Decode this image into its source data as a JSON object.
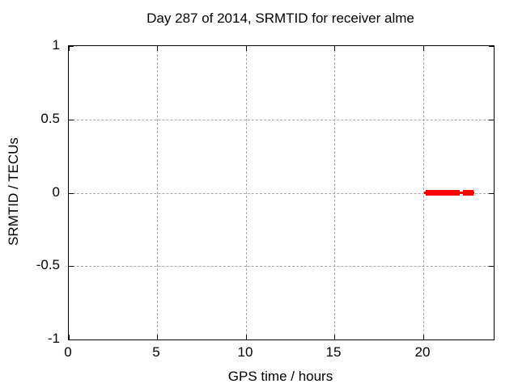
{
  "chart_data": {
    "type": "line",
    "title": "Day 287 of 2014, SRMTID for receiver alme",
    "xlabel": "GPS time / hours",
    "ylabel": "SRMTID / TECUs",
    "xlim": [
      0,
      24
    ],
    "ylim": [
      -1,
      1
    ],
    "xticks": [
      0,
      5,
      10,
      15,
      20
    ],
    "xtick_labels": [
      "0",
      "5",
      "10",
      "15",
      "20"
    ],
    "yticks": [
      1,
      0.5,
      0,
      -0.5,
      -1
    ],
    "ytick_labels": [
      "1",
      "0.5",
      "0",
      "-0.5",
      "-1"
    ],
    "grid": true,
    "legend": "none",
    "colors": {
      "series": "#ff0000",
      "grid": "#a8a8a8",
      "border": "#000000",
      "text": "#000000",
      "background": "#ffffff"
    },
    "series": [
      {
        "name": "SRMTID",
        "color": "#ff0000",
        "y_value": 0,
        "line_x_range": [
          20.05,
          22.9
        ],
        "point_runs": [
          {
            "x_start": 20.15,
            "x_end": 22.08
          },
          {
            "x_start": 22.27,
            "x_end": 22.84
          }
        ]
      }
    ]
  }
}
